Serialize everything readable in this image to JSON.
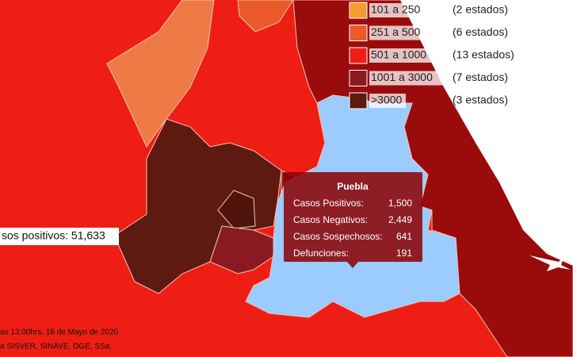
{
  "legend": {
    "items": [
      {
        "range": "101 a 250",
        "count": "(2 estados)",
        "color": "#f39c2f"
      },
      {
        "range": "251 a 500",
        "count": "(6 estados)",
        "color": "#ea5a2a"
      },
      {
        "range": "501 a 1000",
        "count": "(13 estados)",
        "color": "#ee1e14"
      },
      {
        "range": "1001 a 3000",
        "count": "(7 estados)",
        "color": "#8a1a22"
      },
      {
        "range": ">3000",
        "count": "(3 estados)",
        "color": "#5e1a10"
      }
    ]
  },
  "tooltip": {
    "title": "Puebla",
    "rows": [
      {
        "label": "Casos Positivos:",
        "value": "1,500"
      },
      {
        "label": "Casos Negativos:",
        "value": "2,449"
      },
      {
        "label": "Casos Sospechosos:",
        "value": "641"
      },
      {
        "label": "Defunciones:",
        "value": "191"
      }
    ]
  },
  "total_label": "sos positivos: 51,633",
  "footer": [
    "as 13:00hrs, 18 de Mayo de 2020",
    "a SISVER, SINAVE, DGE, SSa."
  ]
}
